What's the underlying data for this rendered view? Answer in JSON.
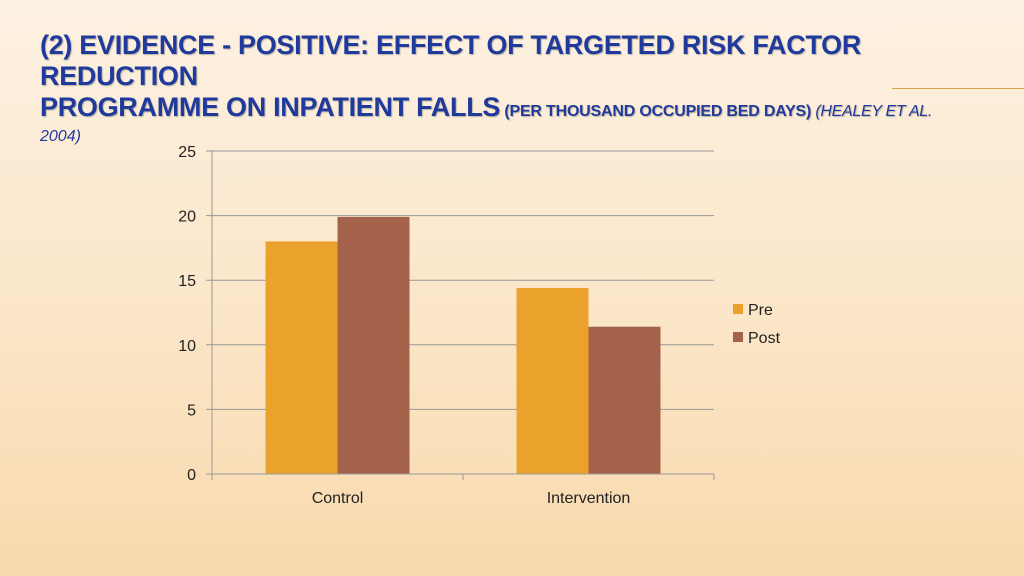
{
  "title": {
    "line1": "(2) Evidence - Positive: Effect of targeted risk factor reduction",
    "line2_main": "programme on inpatient falls",
    "line2_small": " (per thousand occupied bed days)",
    "line2_cite": " (Healey et al.",
    "line3_cite": "2004)"
  },
  "colors": {
    "title": "#1f3a9c",
    "pre": "#eba22c",
    "post": "#a5624a",
    "grid": "#999999"
  },
  "chart_data": {
    "type": "bar",
    "categories": [
      "Control",
      "Intervention"
    ],
    "series": [
      {
        "name": "Pre",
        "values": [
          18,
          14.4
        ]
      },
      {
        "name": "Post",
        "values": [
          19.9,
          11.4
        ]
      }
    ],
    "ylim": [
      0,
      25
    ],
    "yticks": [
      "0",
      "5",
      "10",
      "15",
      "20",
      "25"
    ],
    "grid": true,
    "legend": "right"
  }
}
